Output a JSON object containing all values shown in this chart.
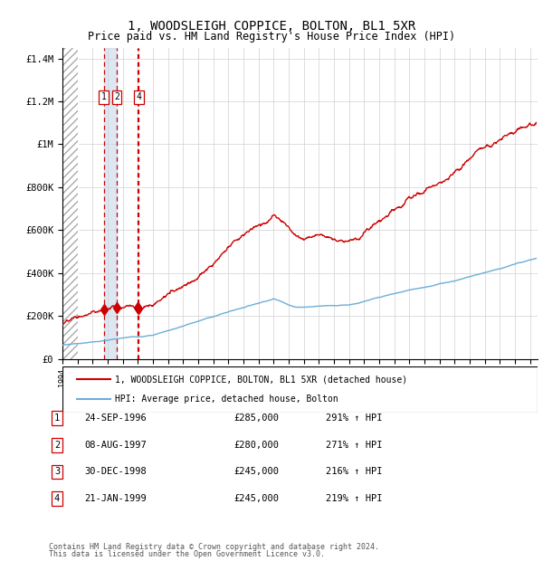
{
  "title": "1, WOODSLEIGH COPPICE, BOLTON, BL1 5XR",
  "subtitle": "Price paid vs. HM Land Registry's House Price Index (HPI)",
  "title_fontsize": 10,
  "subtitle_fontsize": 8.5,
  "xlim_start": 1994.0,
  "xlim_end": 2025.5,
  "ylim_min": 0,
  "ylim_max": 1450000,
  "yticks": [
    0,
    200000,
    400000,
    600000,
    800000,
    1000000,
    1200000,
    1400000
  ],
  "ytick_labels": [
    "£0",
    "£200K",
    "£400K",
    "£600K",
    "£800K",
    "£1M",
    "£1.2M",
    "£1.4M"
  ],
  "transactions": [
    {
      "label": "1",
      "date_num": 1996.73,
      "price": 285000
    },
    {
      "label": "2",
      "date_num": 1997.6,
      "price": 280000
    },
    {
      "label": "3",
      "date_num": 1998.99,
      "price": 245000
    },
    {
      "label": "4",
      "date_num": 1999.05,
      "price": 245000
    }
  ],
  "shown_labels": [
    "1",
    "2",
    "4"
  ],
  "table_rows": [
    {
      "num": "1",
      "date": "24-SEP-1996",
      "price": "£285,000",
      "hpi": "291% ↑ HPI"
    },
    {
      "num": "2",
      "date": "08-AUG-1997",
      "price": "£280,000",
      "hpi": "271% ↑ HPI"
    },
    {
      "num": "3",
      "date": "30-DEC-1998",
      "price": "£245,000",
      "hpi": "216% ↑ HPI"
    },
    {
      "num": "4",
      "date": "21-JAN-1999",
      "price": "£245,000",
      "hpi": "219% ↑ HPI"
    }
  ],
  "legend_line1": "1, WOODSLEIGH COPPICE, BOLTON, BL1 5XR (detached house)",
  "legend_line2": "HPI: Average price, detached house, Bolton",
  "footer1": "Contains HM Land Registry data © Crown copyright and database right 2024.",
  "footer2": "This data is licensed under the Open Government Licence v3.0.",
  "hpi_color": "#6baed6",
  "price_color": "#cc0000",
  "marker_color": "#cc0000",
  "vline_color_band": "#c5d8ea",
  "vline_color_dash": "#cc0000",
  "hatch_color": "#cccccc"
}
